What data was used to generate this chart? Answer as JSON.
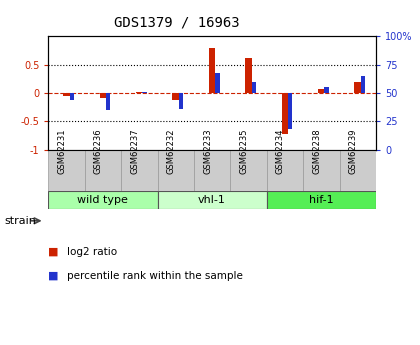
{
  "title": "GDS1379 / 16963",
  "samples": [
    "GSM62231",
    "GSM62236",
    "GSM62237",
    "GSM62232",
    "GSM62233",
    "GSM62235",
    "GSM62234",
    "GSM62238",
    "GSM62239"
  ],
  "log2_ratio": [
    -0.05,
    -0.08,
    0.02,
    -0.12,
    0.8,
    0.62,
    -0.72,
    0.07,
    0.2
  ],
  "percentile_rank": [
    44,
    35,
    51,
    36,
    68,
    60,
    18,
    55,
    65
  ],
  "groups": [
    {
      "label": "wild type",
      "indices": [
        0,
        1,
        2
      ],
      "color": "#aaffaa"
    },
    {
      "label": "vhl-1",
      "indices": [
        3,
        4,
        5
      ],
      "color": "#ccffcc"
    },
    {
      "label": "hif-1",
      "indices": [
        6,
        7,
        8
      ],
      "color": "#55ee55"
    }
  ],
  "ylim_left": [
    -1,
    1
  ],
  "ylim_right": [
    0,
    100
  ],
  "yticks_left": [
    -1,
    -0.5,
    0,
    0.5
  ],
  "ytick_labels_left": [
    "-1",
    "-0.5",
    "0",
    "0.5"
  ],
  "yticks_right": [
    0,
    25,
    50,
    75,
    100
  ],
  "ytick_labels_right": [
    "0",
    "25",
    "50",
    "75",
    "100%"
  ],
  "dotted_lines": [
    -0.5,
    0.5
  ],
  "red_bar_width": 0.18,
  "blue_square_size": 0.12,
  "log2_color": "#cc2200",
  "percentile_color": "#2233cc",
  "bg_color": "#ffffff",
  "label_bg": "#cccccc",
  "label_edge": "#999999",
  "legend_items": [
    "log2 ratio",
    "percentile rank within the sample"
  ],
  "strain_label": "strain"
}
